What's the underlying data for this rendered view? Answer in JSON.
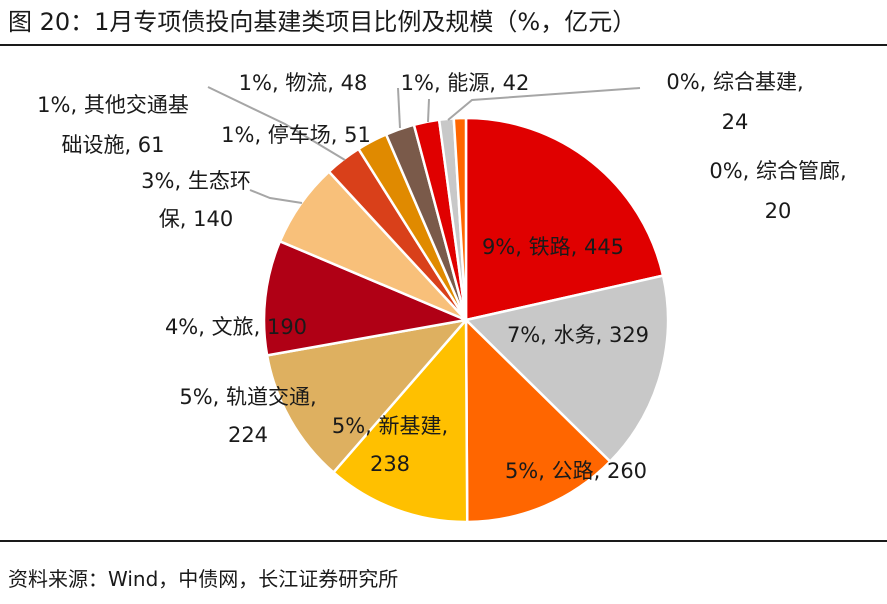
{
  "title": "图 20：1月专项债投向基建类项目比例及规模（%，亿元）",
  "source": "资料来源：Wind，中债网，长江证券研究所",
  "chart_data": {
    "type": "pie",
    "slices": [
      {
        "name": "铁路",
        "percent_label": "9%",
        "value": 445,
        "color": "#e00000",
        "lines": [
          "9%, 铁路, 445"
        ]
      },
      {
        "name": "水务",
        "percent_label": "7%",
        "value": 329,
        "color": "#c8c8c8",
        "lines": [
          "7%, 水务, 329"
        ]
      },
      {
        "name": "公路",
        "percent_label": "5%",
        "value": 260,
        "color": "#ff6600",
        "lines": [
          "5%, 公路, 260"
        ]
      },
      {
        "name": "新基建",
        "percent_label": "5%",
        "value": 238,
        "color": "#ffc000",
        "lines": [
          "5%, 新基建,",
          "238"
        ]
      },
      {
        "name": "轨道交通",
        "percent_label": "5%",
        "value": 224,
        "color": "#deb060",
        "lines": [
          "5%, 轨道交通,",
          "224"
        ]
      },
      {
        "name": "文旅",
        "percent_label": "4%",
        "value": 190,
        "color": "#b00015",
        "lines": [
          "4%, 文旅, 190"
        ]
      },
      {
        "name": "生态环保",
        "percent_label": "3%",
        "value": 140,
        "color": "#f8c07a",
        "lines": [
          "3%, 生态环",
          "保, 140"
        ]
      },
      {
        "name": "其他交通基础设施",
        "percent_label": "1%",
        "value": 61,
        "color": "#d9401a",
        "lines": [
          "1%, 其他交通基",
          "础设施, 61"
        ]
      },
      {
        "name": "停车场",
        "percent_label": "1%",
        "value": 51,
        "color": "#e08a00",
        "lines": [
          "1%, 停车场, 51"
        ]
      },
      {
        "name": "物流",
        "percent_label": "1%",
        "value": 48,
        "color": "#7a5a4a",
        "lines": [
          "1%, 物流, 48"
        ]
      },
      {
        "name": "能源",
        "percent_label": "1%",
        "value": 42,
        "color": "#e00000",
        "lines": [
          "1%, 能源, 42"
        ]
      },
      {
        "name": "综合基建",
        "percent_label": "0%",
        "value": 24,
        "color": "#c8c8c8",
        "lines": [
          "0%, 综合基建,",
          "24"
        ]
      },
      {
        "name": "综合管廊",
        "percent_label": "0%",
        "value": 20,
        "color": "#ff6600",
        "lines": [
          "0%, 综合管廊,",
          "20"
        ]
      }
    ]
  }
}
